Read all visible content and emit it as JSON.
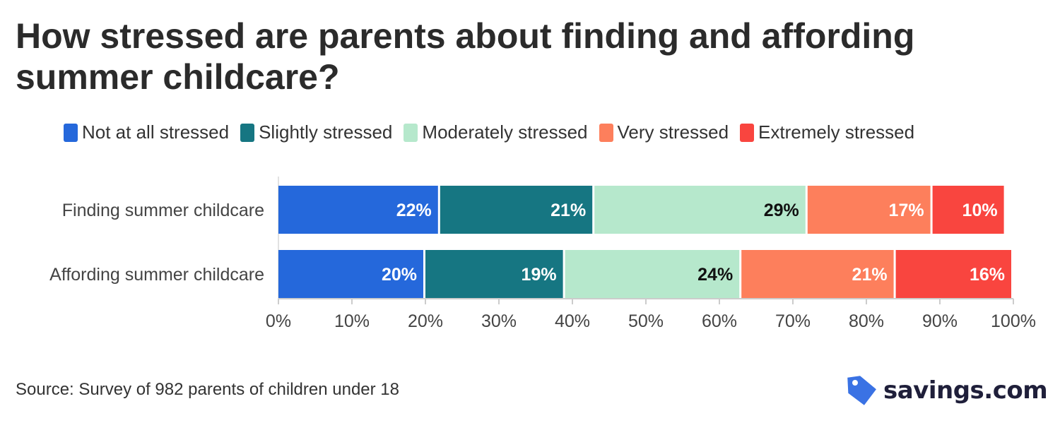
{
  "title": "How stressed are parents about finding and affording summer childcare?",
  "source": "Source: Survey of 982 parents of children under 18",
  "logo_text": "savings.com",
  "colors": {
    "not_at_all": "#2568db",
    "slightly": "#167682",
    "moderately": "#b6e8cc",
    "very": "#fd7f5c",
    "extremely": "#f9453f",
    "logo_tag": "#3a72e4"
  },
  "chart_data": {
    "type": "bar",
    "orientation": "horizontal",
    "stacked": true,
    "categories": [
      "Finding summer childcare",
      "Affording summer childcare"
    ],
    "series": [
      {
        "name": "Not at all stressed",
        "values": [
          22,
          20
        ],
        "color": "#2568db",
        "label_color": "#ffffff"
      },
      {
        "name": "Slightly stressed",
        "values": [
          21,
          19
        ],
        "color": "#167682",
        "label_color": "#ffffff"
      },
      {
        "name": "Moderately stressed",
        "values": [
          29,
          24
        ],
        "color": "#b6e8cc",
        "label_color": "#111111"
      },
      {
        "name": "Very stressed",
        "values": [
          17,
          21
        ],
        "color": "#fd7f5c",
        "label_color": "#ffffff"
      },
      {
        "name": "Extremely stressed",
        "values": [
          10,
          16
        ],
        "color": "#f9453f",
        "label_color": "#ffffff"
      }
    ],
    "xlim": [
      0,
      100
    ],
    "xticks": [
      "0%",
      "10%",
      "20%",
      "30%",
      "40%",
      "50%",
      "60%",
      "70%",
      "80%",
      "90%",
      "100%"
    ],
    "value_suffix": "%",
    "legend_position": "top",
    "grid": false
  }
}
